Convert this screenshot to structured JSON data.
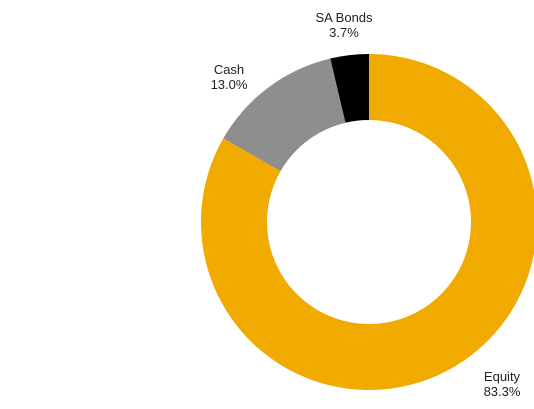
{
  "chart_data": {
    "type": "pie",
    "donut": true,
    "legend": "none",
    "slices": [
      {
        "label": "Equity",
        "value": 83.3,
        "value_label": "83.3%",
        "color": "#f0aa00"
      },
      {
        "label": "Cash",
        "value": 13.0,
        "value_label": "13.0%",
        "color": "#8e8e8e"
      },
      {
        "label": "SA Bonds",
        "value": 3.7,
        "value_label": "3.7%",
        "color": "#000000"
      }
    ]
  }
}
